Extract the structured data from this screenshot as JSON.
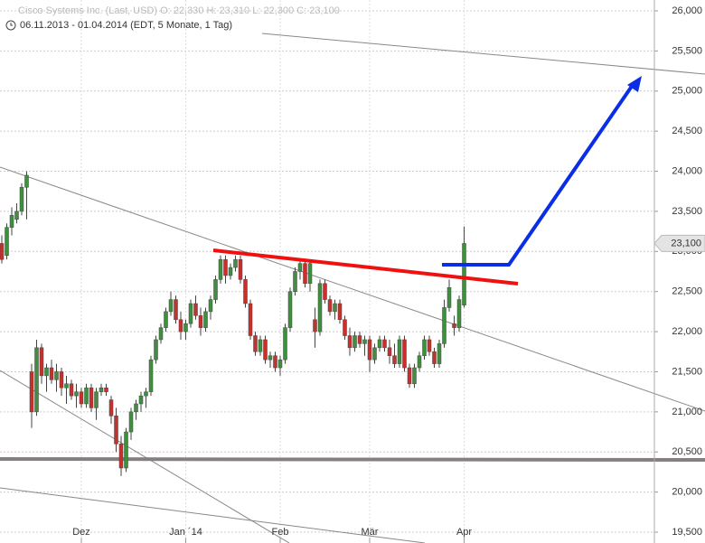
{
  "chart_data": {
    "type": "candlestick",
    "title": "Cisco Systems Inc. (Last, USD)  O: 22,330  H: 23,310  L: 22,300  C: 23,100",
    "subtitle": "06.11.2013 - 01.04.2014 (EDT, 5 Monate, 1 Tag)",
    "categories": [
      null,
      null,
      null,
      null,
      null,
      null,
      null,
      null,
      null,
      null,
      null,
      null,
      null,
      null,
      null,
      null,
      "Dez",
      null,
      null,
      null,
      null,
      null,
      null,
      null,
      null,
      null,
      null,
      null,
      null,
      null,
      null,
      null,
      null,
      null,
      null,
      null,
      null,
      "Jan ´14",
      null,
      null,
      null,
      null,
      null,
      null,
      null,
      null,
      null,
      null,
      null,
      null,
      null,
      null,
      null,
      null,
      null,
      null,
      "Feb",
      null,
      null,
      null,
      null,
      null,
      null,
      null,
      null,
      null,
      null,
      null,
      null,
      null,
      null,
      null,
      null,
      null,
      "Mär",
      null,
      null,
      null,
      null,
      null,
      null,
      null,
      null,
      null,
      null,
      null,
      null,
      null,
      null,
      null,
      null,
      null,
      null,
      "Apr"
    ],
    "candles": [
      [
        23100,
        23200,
        22850,
        22900
      ],
      [
        22950,
        23350,
        22900,
        23300
      ],
      [
        23300,
        23550,
        23200,
        23450
      ],
      [
        23400,
        23600,
        23350,
        23500
      ],
      [
        23500,
        23850,
        23450,
        23800
      ],
      [
        23800,
        24000,
        23400,
        23950
      ],
      [
        21500,
        21600,
        20800,
        21000
      ],
      [
        21000,
        21900,
        20950,
        21800
      ],
      [
        21800,
        21850,
        21350,
        21450
      ],
      [
        21450,
        21600,
        21250,
        21550
      ],
      [
        21550,
        21650,
        21350,
        21400
      ],
      [
        21400,
        21600,
        21250,
        21500
      ],
      [
        21500,
        21550,
        21200,
        21300
      ],
      [
        21300,
        21450,
        21100,
        21350
      ],
      [
        21350,
        21400,
        21150,
        21200
      ],
      [
        21200,
        21350,
        21050,
        21250
      ],
      [
        21250,
        21300,
        21050,
        21100
      ],
      [
        21100,
        21350,
        21050,
        21300
      ],
      [
        21300,
        21350,
        21000,
        21050
      ],
      [
        21050,
        21300,
        20900,
        21250
      ],
      [
        21250,
        21350,
        21200,
        21300
      ],
      [
        21300,
        21350,
        21200,
        21250
      ],
      [
        21150,
        21200,
        20850,
        20950
      ],
      [
        20950,
        21050,
        20500,
        20600
      ],
      [
        20600,
        20700,
        20200,
        20300
      ],
      [
        20300,
        20800,
        20250,
        20750
      ],
      [
        20750,
        21050,
        20650,
        21000
      ],
      [
        21000,
        21150,
        20900,
        21100
      ],
      [
        21100,
        21250,
        21000,
        21200
      ],
      [
        21200,
        21300,
        21050,
        21250
      ],
      [
        21250,
        21700,
        21200,
        21650
      ],
      [
        21650,
        21950,
        21600,
        21900
      ],
      [
        21900,
        22100,
        21850,
        22050
      ],
      [
        22050,
        22300,
        22000,
        22250
      ],
      [
        22250,
        22500,
        22200,
        22400
      ],
      [
        22400,
        22450,
        22100,
        22150
      ],
      [
        22150,
        22250,
        21900,
        22000
      ],
      [
        22000,
        22150,
        21900,
        22100
      ],
      [
        22100,
        22400,
        22050,
        22350
      ],
      [
        22350,
        22450,
        22150,
        22200
      ],
      [
        22200,
        22300,
        21950,
        22050
      ],
      [
        22050,
        22300,
        22000,
        22250
      ],
      [
        22250,
        22450,
        22150,
        22400
      ],
      [
        22400,
        22700,
        22350,
        22650
      ],
      [
        22650,
        22950,
        22600,
        22900
      ],
      [
        22900,
        22950,
        22600,
        22700
      ],
      [
        22700,
        22850,
        22650,
        22800
      ],
      [
        22800,
        22950,
        22750,
        22900
      ],
      [
        22900,
        22950,
        22600,
        22650
      ],
      [
        22650,
        22700,
        22300,
        22350
      ],
      [
        22350,
        22400,
        21900,
        21950
      ],
      [
        21950,
        22000,
        21700,
        21750
      ],
      [
        21750,
        21950,
        21700,
        21900
      ],
      [
        21900,
        21950,
        21600,
        21650
      ],
      [
        21650,
        21750,
        21550,
        21700
      ],
      [
        21700,
        21750,
        21500,
        21550
      ],
      [
        21550,
        21700,
        21450,
        21650
      ],
      [
        21650,
        22100,
        21600,
        22050
      ],
      [
        22050,
        22550,
        22000,
        22500
      ],
      [
        22500,
        22800,
        22450,
        22750
      ],
      [
        22750,
        22900,
        22650,
        22850
      ],
      [
        22850,
        22900,
        22550,
        22600
      ],
      [
        22600,
        22900,
        22500,
        22850
      ],
      [
        22150,
        22300,
        21800,
        22000
      ],
      [
        22000,
        22650,
        21950,
        22600
      ],
      [
        22600,
        22650,
        22350,
        22400
      ],
      [
        22400,
        22450,
        22200,
        22250
      ],
      [
        22250,
        22400,
        22150,
        22350
      ],
      [
        22350,
        22400,
        22100,
        22150
      ],
      [
        22150,
        22200,
        21900,
        21950
      ],
      [
        21950,
        22050,
        21700,
        21800
      ],
      [
        21800,
        22000,
        21750,
        21950
      ],
      [
        21950,
        22000,
        21800,
        21850
      ],
      [
        21850,
        21950,
        21700,
        21900
      ],
      [
        21900,
        21950,
        21500,
        21650
      ],
      [
        21650,
        21850,
        21600,
        21800
      ],
      [
        21800,
        21950,
        21750,
        21900
      ],
      [
        21900,
        21950,
        21750,
        21800
      ],
      [
        21800,
        21900,
        21600,
        21700
      ],
      [
        21700,
        21850,
        21550,
        21600
      ],
      [
        21600,
        21950,
        21550,
        21900
      ],
      [
        21900,
        21950,
        21500,
        21550
      ],
      [
        21550,
        21600,
        21300,
        21350
      ],
      [
        21350,
        21600,
        21300,
        21550
      ],
      [
        21550,
        21750,
        21500,
        21700
      ],
      [
        21700,
        21950,
        21650,
        21900
      ],
      [
        21900,
        21950,
        21700,
        21750
      ],
      [
        21750,
        21800,
        21550,
        21600
      ],
      [
        21600,
        21900,
        21550,
        21850
      ],
      [
        21850,
        22400,
        21800,
        22300
      ],
      [
        22300,
        22650,
        22250,
        22550
      ],
      [
        22100,
        22200,
        21950,
        22050
      ],
      [
        22050,
        22450,
        22000,
        22400
      ],
      [
        22330,
        23310,
        22300,
        23100
      ]
    ],
    "up_color": "#3f8f3f",
    "down_color": "#c9302c",
    "ylim": [
      19365,
      26135
    ],
    "yticks": [
      {
        "value": 19500,
        "label": "19,500"
      },
      {
        "value": 20000,
        "label": "20,000"
      },
      {
        "value": 20500,
        "label": "20,500"
      },
      {
        "value": 21000,
        "label": "21,000"
      },
      {
        "value": 21500,
        "label": "21,500"
      },
      {
        "value": 22000,
        "label": "22,000"
      },
      {
        "value": 22500,
        "label": "22,500"
      },
      {
        "value": 23000,
        "label": "23,000"
      },
      {
        "value": 23500,
        "label": "23,500"
      },
      {
        "value": 24000,
        "label": "24,000"
      },
      {
        "value": 24500,
        "label": "24,500"
      },
      {
        "value": 25000,
        "label": "25,000"
      },
      {
        "value": 25500,
        "label": "25,500"
      },
      {
        "value": 26000,
        "label": "26,000"
      }
    ],
    "last_price": {
      "value": 23100,
      "label": "23,100"
    },
    "grid": true
  }
}
